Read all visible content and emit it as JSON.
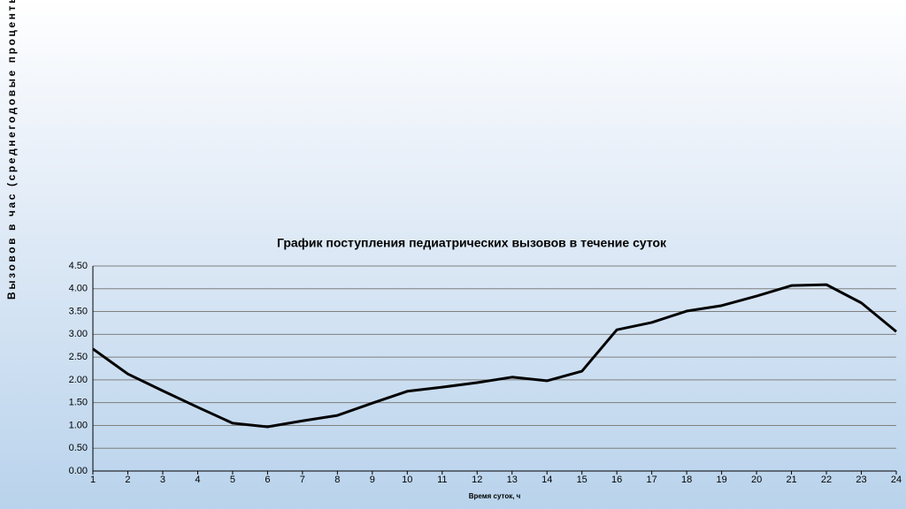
{
  "chart_data": {
    "type": "line",
    "title": "График поступления педиатрических вызовов в течение суток",
    "x_label": "Время суток, ч",
    "y_label": "Вызовов в час (среднегодовые проценты",
    "x": [
      1,
      2,
      3,
      4,
      5,
      6,
      7,
      8,
      9,
      10,
      11,
      12,
      13,
      14,
      15,
      16,
      17,
      18,
      19,
      20,
      21,
      22,
      23,
      24
    ],
    "series": [
      {
        "name": "Вызовов в час",
        "color": "#000000",
        "values": [
          2.68,
          2.13,
          1.76,
          1.4,
          1.05,
          0.97,
          1.1,
          1.22,
          1.49,
          1.75,
          1.84,
          1.94,
          2.06,
          1.98,
          2.19,
          3.1,
          3.26,
          3.51,
          3.63,
          3.84,
          4.07,
          4.09,
          3.69,
          3.06
        ]
      }
    ],
    "xlim": [
      1,
      24
    ],
    "xticks": [
      1,
      2,
      3,
      4,
      5,
      6,
      7,
      8,
      9,
      10,
      11,
      12,
      13,
      14,
      15,
      16,
      17,
      18,
      19,
      20,
      21,
      22,
      23,
      24
    ],
    "ylim": [
      0,
      4.5
    ],
    "yticks": [
      {
        "value": 0,
        "label": "0.00"
      },
      {
        "value": 0.5,
        "label": "0.50"
      },
      {
        "value": 1,
        "label": "1.00"
      },
      {
        "value": 1.5,
        "label": "1.50"
      },
      {
        "value": 2,
        "label": "2.00"
      },
      {
        "value": 2.5,
        "label": "2.50"
      },
      {
        "value": 3,
        "label": "3.00"
      },
      {
        "value": 3.5,
        "label": "3.50"
      },
      {
        "value": 4,
        "label": "4.00"
      },
      {
        "value": 4.5,
        "label": "4.50"
      }
    ],
    "grid": true
  }
}
